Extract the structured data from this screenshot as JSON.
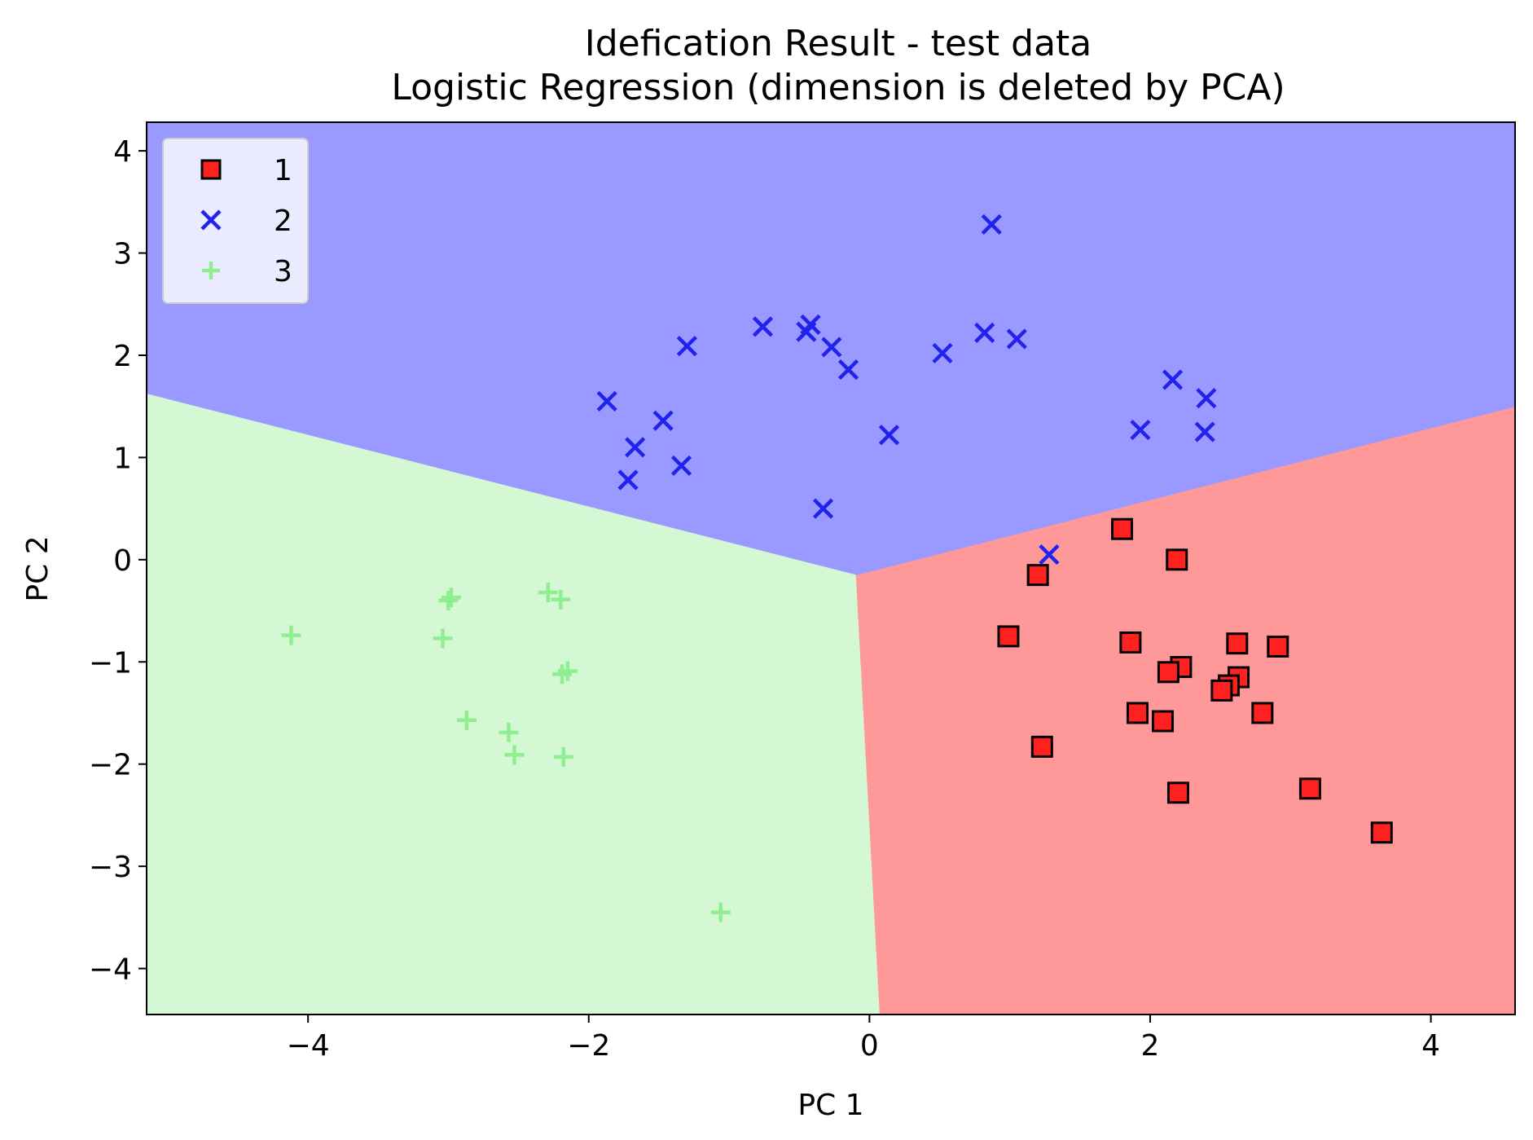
{
  "chart_data": {
    "type": "scatter",
    "title": "Idefication Result - test data",
    "subtitle": "Logistic Regression (dimension is deleted by PCA)",
    "xlabel": "PC 1",
    "ylabel": "PC 2",
    "xlim": [
      -5.15,
      4.6
    ],
    "ylim": [
      -4.45,
      4.28
    ],
    "xticks": [
      -4,
      -2,
      0,
      2,
      4
    ],
    "yticks": [
      -4,
      -3,
      -2,
      -1,
      0,
      1,
      2,
      3,
      4
    ],
    "xtick_labels": [
      "−4",
      "−2",
      "0",
      "2",
      "4"
    ],
    "ytick_labels": [
      "−4",
      "−3",
      "−2",
      "−1",
      "0",
      "1",
      "2",
      "3",
      "4"
    ],
    "grid": false,
    "legend_position": "top-left",
    "regions": [
      {
        "class": "1",
        "color": "#ff9999",
        "polygon": [
          [
            -0.1,
            -0.15
          ],
          [
            4.6,
            1.5
          ],
          [
            4.6,
            -4.45
          ],
          [
            0.07,
            -4.45
          ]
        ]
      },
      {
        "class": "2",
        "color": "#9999ff",
        "polygon": [
          [
            -5.15,
            4.28
          ],
          [
            4.6,
            4.28
          ],
          [
            4.6,
            1.5
          ],
          [
            -0.1,
            -0.15
          ],
          [
            -5.15,
            1.62
          ]
        ]
      },
      {
        "class": "3",
        "color": "#d3f8d3",
        "polygon": [
          [
            -5.15,
            1.62
          ],
          [
            -0.1,
            -0.15
          ],
          [
            0.07,
            -4.45
          ],
          [
            -5.15,
            -4.45
          ]
        ]
      }
    ],
    "series": [
      {
        "name": "1",
        "marker": "square",
        "color": "#ff2020",
        "points": [
          [
            1.8,
            0.3
          ],
          [
            2.19,
            0.0
          ],
          [
            1.2,
            -0.15
          ],
          [
            0.99,
            -0.75
          ],
          [
            1.86,
            -0.81
          ],
          [
            2.62,
            -0.82
          ],
          [
            2.91,
            -0.85
          ],
          [
            2.22,
            -1.05
          ],
          [
            2.13,
            -1.1
          ],
          [
            2.63,
            -1.15
          ],
          [
            2.56,
            -1.23
          ],
          [
            2.51,
            -1.28
          ],
          [
            1.91,
            -1.5
          ],
          [
            2.8,
            -1.5
          ],
          [
            2.09,
            -1.58
          ],
          [
            1.23,
            -1.83
          ],
          [
            2.2,
            -2.28
          ],
          [
            3.14,
            -2.24
          ],
          [
            3.65,
            -2.67
          ]
        ]
      },
      {
        "name": "2",
        "marker": "x",
        "color": "#2222ee",
        "points": [
          [
            0.87,
            3.28
          ],
          [
            -0.76,
            2.28
          ],
          [
            -0.42,
            2.3
          ],
          [
            -0.45,
            2.23
          ],
          [
            0.82,
            2.22
          ],
          [
            1.05,
            2.16
          ],
          [
            -1.3,
            2.09
          ],
          [
            -0.27,
            2.08
          ],
          [
            0.52,
            2.02
          ],
          [
            -0.15,
            1.86
          ],
          [
            2.16,
            1.76
          ],
          [
            2.4,
            1.58
          ],
          [
            -1.87,
            1.55
          ],
          [
            -1.47,
            1.36
          ],
          [
            1.93,
            1.27
          ],
          [
            2.39,
            1.25
          ],
          [
            0.14,
            1.22
          ],
          [
            -1.67,
            1.1
          ],
          [
            -1.34,
            0.92
          ],
          [
            -1.72,
            0.78
          ],
          [
            -0.33,
            0.5
          ],
          [
            1.28,
            0.05
          ]
        ]
      },
      {
        "name": "3",
        "marker": "plus",
        "color": "#90ee90",
        "points": [
          [
            -2.29,
            -0.32
          ],
          [
            -2.98,
            -0.37
          ],
          [
            -3.0,
            -0.4
          ],
          [
            -2.2,
            -0.39
          ],
          [
            -4.12,
            -0.74
          ],
          [
            -3.04,
            -0.77
          ],
          [
            -2.15,
            -1.09
          ],
          [
            -2.19,
            -1.12
          ],
          [
            -2.87,
            -1.57
          ],
          [
            -2.57,
            -1.69
          ],
          [
            -2.53,
            -1.91
          ],
          [
            -2.18,
            -1.93
          ],
          [
            -1.06,
            -3.45
          ]
        ]
      }
    ]
  }
}
